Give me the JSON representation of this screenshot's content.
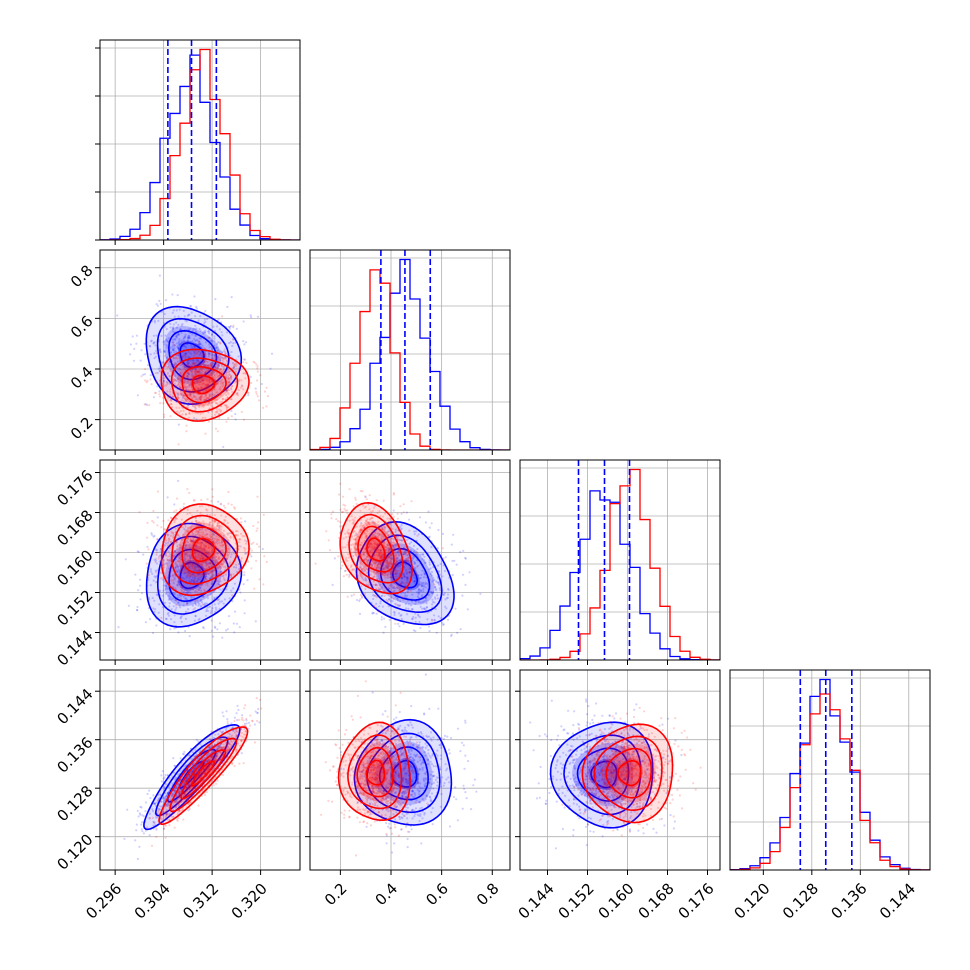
{
  "chart_data": {
    "type": "corner",
    "parameters": 4,
    "colors": {
      "series_a": "#0000ff",
      "series_b": "#ff0000",
      "quantile_line": "#0000ff",
      "grid": "#b0b0b0"
    },
    "grid": true,
    "axis_ranges": [
      [
        0.2935,
        0.3265
      ],
      [
        0.08,
        0.87
      ],
      [
        0.1385,
        0.1785
      ],
      [
        0.1145,
        0.1475
      ]
    ],
    "x_tick_values": [
      [
        0.296,
        0.304,
        0.312,
        0.32
      ],
      [
        0.2,
        0.4,
        0.6,
        0.8
      ],
      [
        0.144,
        0.152,
        0.16,
        0.168,
        0.176
      ],
      [
        0.12,
        0.128,
        0.136,
        0.144
      ]
    ],
    "x_tick_labels": [
      [
        "0.296",
        "0.304",
        "0.312",
        "0.320"
      ],
      [
        "0.2",
        "0.4",
        "0.6",
        "0.8"
      ],
      [
        "0.144",
        "0.152",
        "0.160",
        "0.168",
        "0.176"
      ],
      [
        "0.120",
        "0.128",
        "0.136",
        "0.144"
      ]
    ],
    "y_tick_values": [
      [],
      [
        0.2,
        0.4,
        0.6,
        0.8
      ],
      [
        0.144,
        0.152,
        0.16,
        0.168,
        0.176
      ],
      [
        0.12,
        0.128,
        0.136,
        0.144
      ]
    ],
    "y_tick_labels": [
      [],
      [
        "0.2",
        "0.4",
        "0.6",
        "0.8"
      ],
      [
        "0.144",
        "0.152",
        "0.160",
        "0.168",
        "0.176"
      ],
      [
        "0.120",
        "0.128",
        "0.136",
        "0.144"
      ]
    ],
    "quantile_lines": [
      [
        0.3047,
        0.3086,
        0.3127
      ],
      [
        0.36,
        0.455,
        0.555
      ],
      [
        0.1502,
        0.1554,
        0.1604
      ],
      [
        0.1261,
        0.1303,
        0.1346
      ]
    ],
    "series": [
      {
        "color": "#0000ff",
        "means": [
          0.3086,
          0.455,
          0.1554,
          0.1303
        ],
        "stds": [
          0.0039,
          0.095,
          0.0051,
          0.0043
        ],
        "correlations": {
          "0-1": -0.15,
          "0-2": 0.1,
          "0-3": 0.9,
          "1-2": -0.25,
          "1-3": 0.0,
          "2-3": 0.0
        }
      },
      {
        "color": "#ff0000",
        "means": [
          0.3105,
          0.34,
          0.1605,
          0.1305
        ],
        "stds": [
          0.0036,
          0.07,
          0.0045,
          0.004
        ],
        "correlations": {
          "0-1": 0.0,
          "0-2": 0.1,
          "0-3": 0.9,
          "1-2": -0.3,
          "1-3": 0.0,
          "2-3": 0.05
        }
      }
    ]
  }
}
